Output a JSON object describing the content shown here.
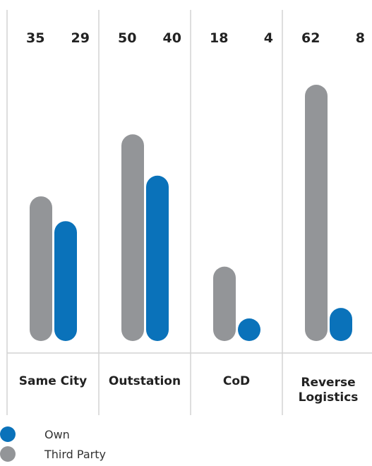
{
  "chart_data": {
    "type": "bar",
    "categories": [
      [
        "Same City"
      ],
      [
        "Outstation"
      ],
      [
        "CoD"
      ],
      [
        "Reverse",
        "Logistics"
      ]
    ],
    "series": [
      {
        "name": "Third Party",
        "color": "#939598",
        "values": [
          35,
          50,
          18,
          62
        ]
      },
      {
        "name": "Own",
        "color": "#0a72ba",
        "values": [
          29,
          40,
          4,
          8
        ]
      }
    ],
    "ylim": [
      0,
      62
    ],
    "grid": "vertical separators",
    "legend_position": "bottom-left"
  },
  "legend": [
    {
      "label": "Own",
      "color": "#0a72ba"
    },
    {
      "label": "Third Party",
      "color": "#939598"
    }
  ]
}
